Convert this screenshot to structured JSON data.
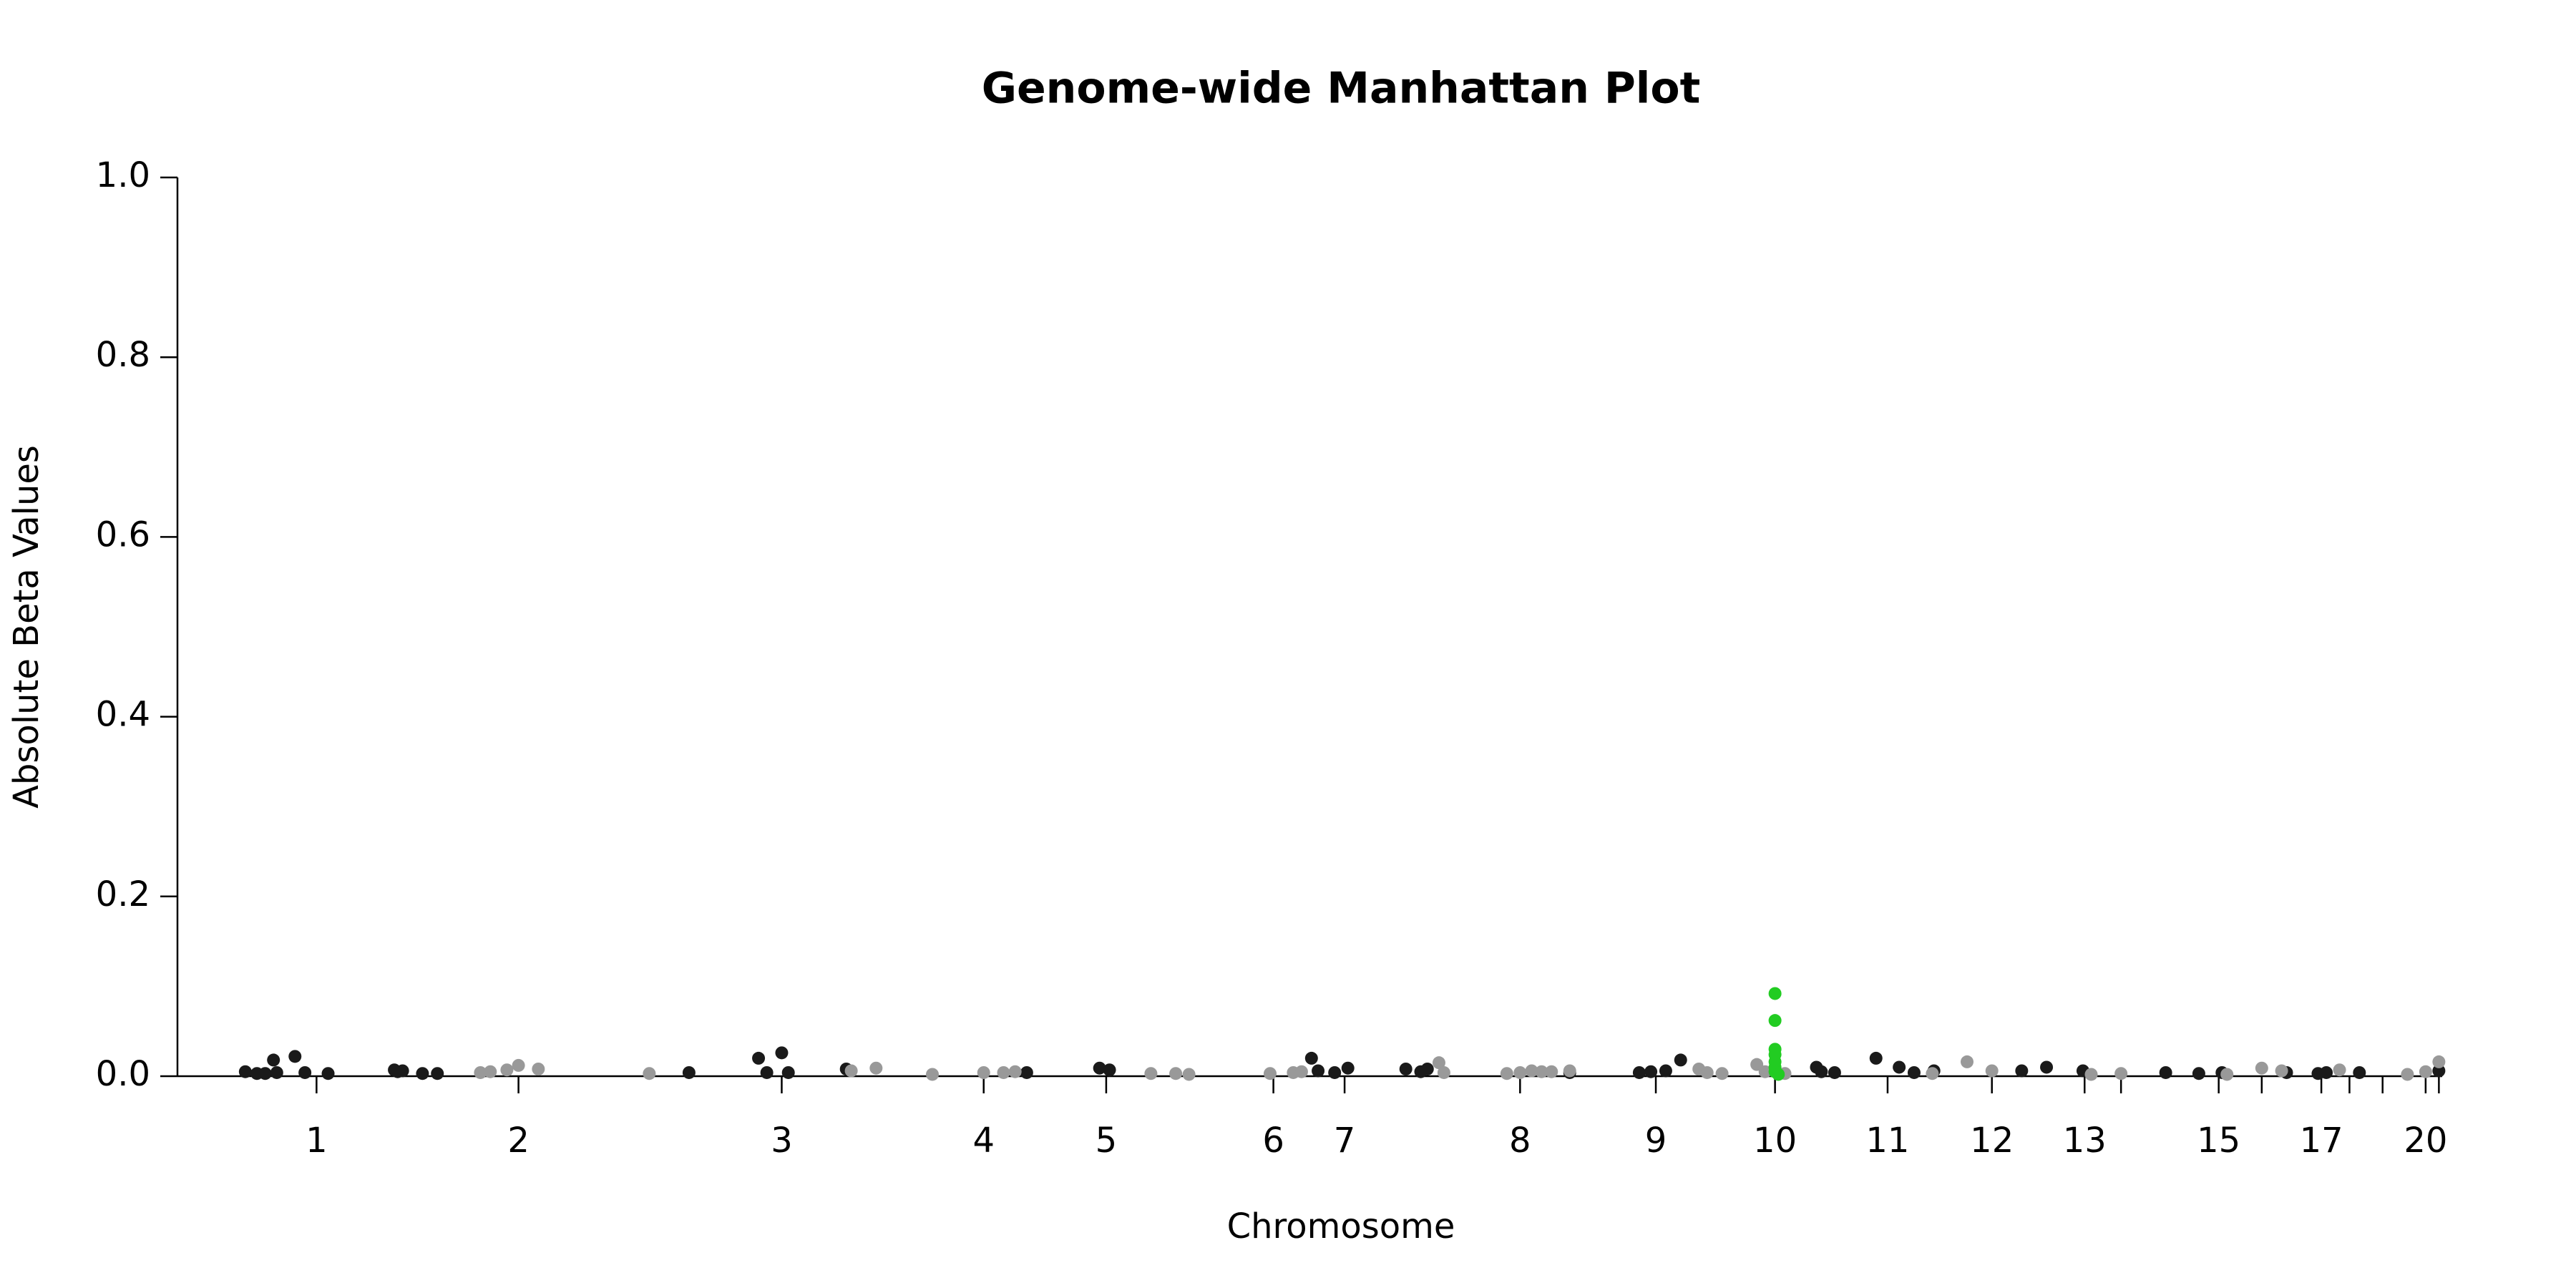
{
  "chart_data": {
    "type": "scatter",
    "title": "Genome-wide Manhattan Plot",
    "x_label": "Chromosome",
    "y_label": "Absolute Beta Values",
    "xlim": [
      107,
      1475
    ],
    "ylim": [
      0,
      1
    ],
    "yticks": [
      {
        "value": 0,
        "label": "0.0"
      },
      {
        "value": 0.2,
        "label": "0.2"
      },
      {
        "value": 0.4,
        "label": "0.4"
      },
      {
        "value": 0.6,
        "label": "0.6"
      },
      {
        "value": 0.8,
        "label": "0.8"
      },
      {
        "value": 1,
        "label": "1.0"
      }
    ],
    "xticks": [
      {
        "value": 191,
        "label": "1"
      },
      {
        "value": 313,
        "label": "2"
      },
      {
        "value": 472,
        "label": "3"
      },
      {
        "value": 594,
        "label": "4"
      },
      {
        "value": 668,
        "label": "5"
      },
      {
        "value": 769,
        "label": "6"
      },
      {
        "value": 812,
        "label": "7"
      },
      {
        "value": 918,
        "label": "8"
      },
      {
        "value": 1000,
        "label": "9"
      },
      {
        "value": 1072,
        "label": "10"
      },
      {
        "value": 1140,
        "label": "11"
      },
      {
        "value": 1203,
        "label": "12"
      },
      {
        "value": 1259,
        "label": "13"
      },
      {
        "value": 1281,
        "label": null
      },
      {
        "value": 1340,
        "label": "15"
      },
      {
        "value": 1366,
        "label": null
      },
      {
        "value": 1402,
        "label": "17"
      },
      {
        "value": 1419,
        "label": null
      },
      {
        "value": 1439,
        "label": null
      },
      {
        "value": 1465,
        "label": "20"
      },
      {
        "value": 1473,
        "label": null
      }
    ],
    "series": [
      {
        "color": "#1a1a1a",
        "x": [
          148,
          155,
          160,
          165,
          167,
          178,
          184,
          198,
          238,
          240,
          243,
          255,
          264,
          416,
          458,
          463,
          472,
          476,
          511,
          620,
          664,
          670,
          792,
          796,
          806,
          814,
          849,
          858,
          862,
          948,
          990,
          997,
          1006,
          1015,
          1097,
          1100,
          1108,
          1133,
          1147,
          1156,
          1168,
          1221,
          1236,
          1258,
          1308,
          1328,
          1342,
          1381,
          1400,
          1405,
          1425,
          1473
        ],
        "values": [
          0.005,
          0.003,
          0.003,
          0.018,
          0.004,
          0.022,
          0.004,
          0.003,
          0.007,
          0.005,
          0.006,
          0.003,
          0.003,
          0.004,
          0.02,
          0.004,
          0.026,
          0.004,
          0.008,
          0.004,
          0.009,
          0.007,
          0.02,
          0.006,
          0.004,
          0.009,
          0.008,
          0.005,
          0.008,
          0.004,
          0.004,
          0.005,
          0.006,
          0.018,
          0.01,
          0.005,
          0.004,
          0.02,
          0.01,
          0.004,
          0.006,
          0.006,
          0.01,
          0.006,
          0.004,
          0.003,
          0.004,
          0.004,
          0.003,
          0.004,
          0.004,
          0.006
        ]
      },
      {
        "color": "#999999",
        "x": [
          290,
          296,
          306,
          313,
          325,
          392,
          514,
          529,
          563,
          594,
          606,
          613,
          695,
          710,
          718,
          767,
          781,
          786,
          869,
          872,
          910,
          918,
          925,
          931,
          937,
          948,
          1026,
          1031,
          1040,
          1061,
          1066,
          1078,
          1167,
          1188,
          1203,
          1263,
          1281,
          1345,
          1366,
          1378,
          1413,
          1454,
          1465,
          1473
        ],
        "values": [
          0.004,
          0.005,
          0.007,
          0.012,
          0.008,
          0.003,
          0.006,
          0.009,
          0.002,
          0.004,
          0.004,
          0.005,
          0.003,
          0.003,
          0.002,
          0.003,
          0.004,
          0.005,
          0.015,
          0.004,
          0.003,
          0.004,
          0.006,
          0.005,
          0.005,
          0.006,
          0.008,
          0.004,
          0.003,
          0.013,
          0.005,
          0.003,
          0.003,
          0.016,
          0.006,
          0.002,
          0.003,
          0.002,
          0.009,
          0.006,
          0.007,
          0.002,
          0.005,
          0.016
        ]
      },
      {
        "color": "#22cc22",
        "x": [
          1072,
          1072,
          1072,
          1072,
          1072,
          1072,
          1072,
          1074
        ],
        "values": [
          0.092,
          0.062,
          0.03,
          0.024,
          0.016,
          0.01,
          0.005,
          0.002
        ]
      }
    ]
  }
}
